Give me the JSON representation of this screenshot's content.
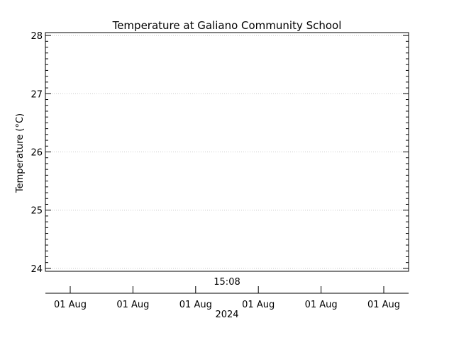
{
  "chart_data": {
    "type": "line",
    "title": "Temperature at Galiano Community School",
    "ylabel": "Temperature (°C)",
    "xlabel": "",
    "ylim": [
      23.95,
      28.05
    ],
    "y_ticks": [
      24,
      25,
      26,
      27,
      28
    ],
    "y_tick_labels": [
      "24",
      "25",
      "26",
      "27",
      "28"
    ],
    "grid": true,
    "time_annotation": "15:08",
    "x_tick_labels": [
      "01 Aug",
      "01 Aug",
      "01 Aug",
      "01 Aug",
      "01 Aug",
      "01 Aug"
    ],
    "x_year_label": "2024",
    "series": []
  }
}
